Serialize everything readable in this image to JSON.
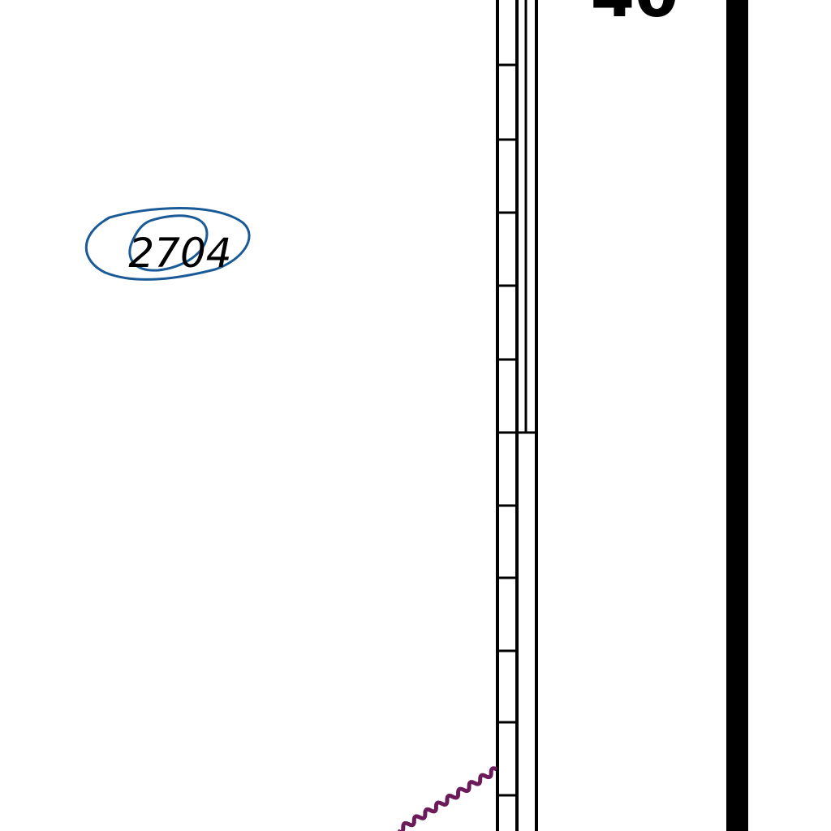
{
  "map": {
    "contour_label": "2704",
    "section_number": "40",
    "colors": {
      "background": "#ffffff",
      "ink": "#000000",
      "contour": "#1a5a96",
      "wavy_line": "#6b1a5a"
    },
    "features": {
      "contour": "closed-contour-loop",
      "rail": "railroad-track-with-ties",
      "boundary": "thick-boundary-line",
      "wavy_line": "stream-line"
    }
  }
}
